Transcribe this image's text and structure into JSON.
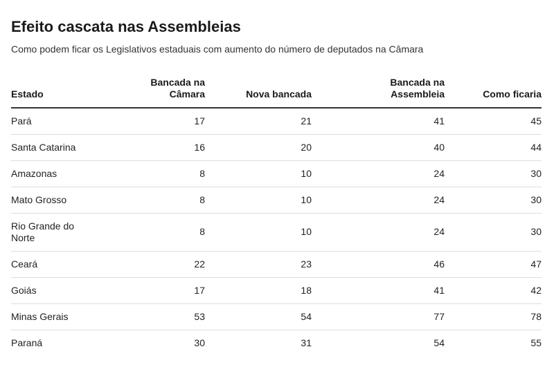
{
  "title": "Efeito cascata nas Assembleias",
  "subtitle": "Como podem ficar os Legislativos estaduais com aumento do número de deputados na Câmara",
  "table": {
    "headers": [
      "Estado",
      "Bancada na Câmara",
      "Nova bancada",
      "Bancada na Assembleia",
      "Como ficaria"
    ],
    "rows": [
      [
        "Pará",
        "17",
        "21",
        "41",
        "45"
      ],
      [
        "Santa Catarina",
        "16",
        "20",
        "40",
        "44"
      ],
      [
        "Amazonas",
        "8",
        "10",
        "24",
        "30"
      ],
      [
        "Mato Grosso",
        "8",
        "10",
        "24",
        "30"
      ],
      [
        "Rio Grande do Norte",
        "8",
        "10",
        "24",
        "30"
      ],
      [
        "Ceará",
        "22",
        "23",
        "46",
        "47"
      ],
      [
        "Goiás",
        "17",
        "18",
        "41",
        "42"
      ],
      [
        "Minas Gerais",
        "53",
        "54",
        "77",
        "78"
      ],
      [
        "Paraná",
        "30",
        "31",
        "54",
        "55"
      ]
    ]
  }
}
